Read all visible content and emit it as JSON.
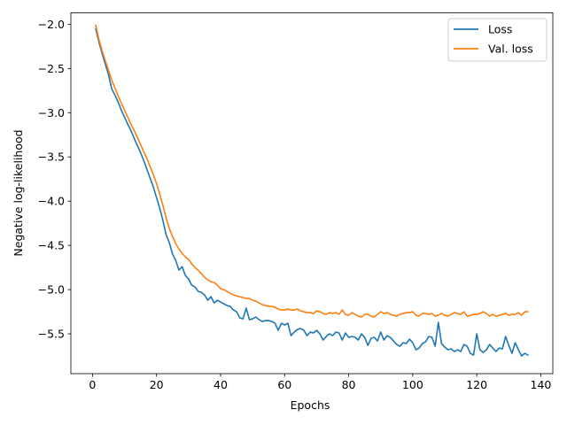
{
  "chart_data": {
    "type": "line",
    "title": "",
    "xlabel": "Epochs",
    "ylabel": "Negative log-likelihood",
    "xlim": [
      -6.75,
      143.75
    ],
    "ylim": [
      -5.95,
      -1.87
    ],
    "xticks": [
      0,
      20,
      40,
      60,
      80,
      100,
      120,
      140
    ],
    "xtick_labels": [
      "0",
      "20",
      "40",
      "60",
      "80",
      "100",
      "120",
      "140"
    ],
    "yticks": [
      -2.0,
      -2.5,
      -3.0,
      -3.5,
      -4.0,
      -4.5,
      -5.0,
      -5.5
    ],
    "ytick_labels": [
      "−2.0",
      "−2.5",
      "−3.0",
      "−3.5",
      "−4.0",
      "−4.5",
      "−5.0",
      "−5.5"
    ],
    "grid": false,
    "legend_position": "top-right",
    "series": [
      {
        "name": "Loss",
        "color": "#1f77b4",
        "x": [
          1,
          2,
          3,
          4,
          5,
          6,
          7,
          8,
          9,
          10,
          11,
          12,
          13,
          14,
          15,
          16,
          17,
          18,
          19,
          20,
          21,
          22,
          23,
          24,
          25,
          26,
          27,
          28,
          29,
          30,
          31,
          32,
          33,
          34,
          35,
          36,
          37,
          38,
          39,
          40,
          41,
          42,
          43,
          44,
          45,
          46,
          47,
          48,
          49,
          50,
          51,
          52,
          53,
          54,
          55,
          56,
          57,
          58,
          59,
          60,
          61,
          62,
          63,
          64,
          65,
          66,
          67,
          68,
          69,
          70,
          71,
          72,
          73,
          74,
          75,
          76,
          77,
          78,
          79,
          80,
          81,
          82,
          83,
          84,
          85,
          86,
          87,
          88,
          89,
          90,
          91,
          92,
          93,
          94,
          95,
          96,
          97,
          98,
          99,
          100,
          101,
          102,
          103,
          104,
          105,
          106,
          107,
          108,
          109,
          110,
          111,
          112,
          113,
          114,
          115,
          116,
          117,
          118,
          119,
          120,
          121,
          122,
          123,
          124,
          125,
          126,
          127,
          128,
          129,
          130,
          131,
          132,
          133,
          134,
          135,
          136
        ],
        "y": [
          -2.05,
          -2.2,
          -2.33,
          -2.45,
          -2.57,
          -2.73,
          -2.8,
          -2.88,
          -2.97,
          -3.05,
          -3.13,
          -3.2,
          -3.29,
          -3.37,
          -3.45,
          -3.54,
          -3.64,
          -3.74,
          -3.84,
          -3.96,
          -4.08,
          -4.22,
          -4.38,
          -4.47,
          -4.6,
          -4.67,
          -4.78,
          -4.74,
          -4.84,
          -4.88,
          -4.95,
          -4.97,
          -5.02,
          -5.03,
          -5.06,
          -5.12,
          -5.08,
          -5.15,
          -5.12,
          -5.14,
          -5.16,
          -5.18,
          -5.19,
          -5.23,
          -5.25,
          -5.32,
          -5.33,
          -5.21,
          -5.34,
          -5.33,
          -5.31,
          -5.34,
          -5.36,
          -5.35,
          -5.35,
          -5.36,
          -5.38,
          -5.46,
          -5.38,
          -5.4,
          -5.38,
          -5.52,
          -5.48,
          -5.45,
          -5.44,
          -5.46,
          -5.52,
          -5.48,
          -5.49,
          -5.46,
          -5.5,
          -5.57,
          -5.53,
          -5.5,
          -5.52,
          -5.48,
          -5.49,
          -5.57,
          -5.49,
          -5.54,
          -5.53,
          -5.54,
          -5.57,
          -5.5,
          -5.54,
          -5.63,
          -5.55,
          -5.54,
          -5.58,
          -5.48,
          -5.57,
          -5.52,
          -5.54,
          -5.58,
          -5.62,
          -5.64,
          -5.6,
          -5.61,
          -5.56,
          -5.6,
          -5.68,
          -5.66,
          -5.61,
          -5.59,
          -5.53,
          -5.54,
          -5.64,
          -5.37,
          -5.61,
          -5.65,
          -5.68,
          -5.67,
          -5.7,
          -5.68,
          -5.7,
          -5.62,
          -5.64,
          -5.72,
          -5.74,
          -5.5,
          -5.68,
          -5.71,
          -5.68,
          -5.62,
          -5.66,
          -5.7,
          -5.66,
          -5.67,
          -5.53,
          -5.63,
          -5.72,
          -5.6,
          -5.68,
          -5.75,
          -5.72,
          -5.74
        ]
      },
      {
        "name": "Val. loss",
        "color": "#ff7f0e",
        "x": [
          1,
          2,
          3,
          4,
          5,
          6,
          7,
          8,
          9,
          10,
          11,
          12,
          13,
          14,
          15,
          16,
          17,
          18,
          19,
          20,
          21,
          22,
          23,
          24,
          25,
          26,
          27,
          28,
          29,
          30,
          31,
          32,
          33,
          34,
          35,
          36,
          37,
          38,
          39,
          40,
          41,
          42,
          43,
          44,
          45,
          46,
          47,
          48,
          49,
          50,
          51,
          52,
          53,
          54,
          55,
          56,
          57,
          58,
          59,
          60,
          61,
          62,
          63,
          64,
          65,
          66,
          67,
          68,
          69,
          70,
          71,
          72,
          73,
          74,
          75,
          76,
          77,
          78,
          79,
          80,
          81,
          82,
          83,
          84,
          85,
          86,
          87,
          88,
          89,
          90,
          91,
          92,
          93,
          94,
          95,
          96,
          97,
          98,
          99,
          100,
          101,
          102,
          103,
          104,
          105,
          106,
          107,
          108,
          109,
          110,
          111,
          112,
          113,
          114,
          115,
          116,
          117,
          118,
          119,
          120,
          121,
          122,
          123,
          124,
          125,
          126,
          127,
          128,
          129,
          130,
          131,
          132,
          133,
          134,
          135,
          136
        ],
        "y": [
          -2.01,
          -2.17,
          -2.3,
          -2.41,
          -2.52,
          -2.63,
          -2.72,
          -2.81,
          -2.89,
          -2.97,
          -3.05,
          -3.13,
          -3.2,
          -3.28,
          -3.36,
          -3.44,
          -3.52,
          -3.61,
          -3.7,
          -3.8,
          -3.92,
          -4.05,
          -4.19,
          -4.31,
          -4.4,
          -4.48,
          -4.54,
          -4.59,
          -4.63,
          -4.66,
          -4.71,
          -4.75,
          -4.78,
          -4.82,
          -4.86,
          -4.89,
          -4.91,
          -4.92,
          -4.95,
          -4.99,
          -5.0,
          -5.02,
          -5.04,
          -5.06,
          -5.07,
          -5.08,
          -5.09,
          -5.1,
          -5.1,
          -5.12,
          -5.13,
          -5.15,
          -5.17,
          -5.18,
          -5.19,
          -5.19,
          -5.2,
          -5.22,
          -5.23,
          -5.23,
          -5.22,
          -5.23,
          -5.23,
          -5.22,
          -5.24,
          -5.25,
          -5.26,
          -5.26,
          -5.27,
          -5.24,
          -5.25,
          -5.27,
          -5.28,
          -5.26,
          -5.27,
          -5.26,
          -5.28,
          -5.23,
          -5.28,
          -5.29,
          -5.26,
          -5.28,
          -5.3,
          -5.31,
          -5.28,
          -5.28,
          -5.3,
          -5.31,
          -5.28,
          -5.25,
          -5.27,
          -5.26,
          -5.28,
          -5.29,
          -5.3,
          -5.28,
          -5.27,
          -5.26,
          -5.26,
          -5.25,
          -5.29,
          -5.3,
          -5.27,
          -5.27,
          -5.28,
          -5.27,
          -5.3,
          -5.29,
          -5.27,
          -5.29,
          -5.3,
          -5.28,
          -5.26,
          -5.27,
          -5.28,
          -5.25,
          -5.3,
          -5.29,
          -5.28,
          -5.28,
          -5.27,
          -5.25,
          -5.27,
          -5.3,
          -5.28,
          -5.3,
          -5.29,
          -5.28,
          -5.27,
          -5.29,
          -5.28,
          -5.28,
          -5.26,
          -5.29,
          -5.25,
          -5.25
        ]
      }
    ]
  }
}
